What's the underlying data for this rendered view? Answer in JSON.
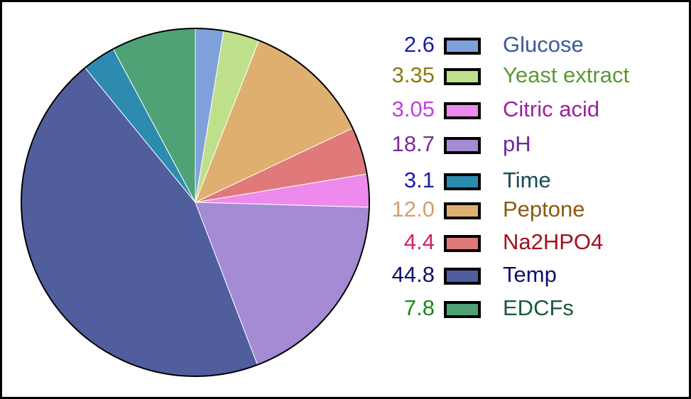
{
  "chart_data": {
    "type": "pie",
    "categories": [
      "Glucose",
      "Yeast extract",
      "Citric acid",
      "pH",
      "Time",
      "Peptone",
      "Na2HPO4",
      "Temp",
      "EDCFs"
    ],
    "values": [
      2.6,
      3.35,
      3.05,
      18.7,
      3.1,
      12.0,
      4.4,
      44.8,
      7.8
    ],
    "value_labels": [
      "2.6",
      "3.35",
      "3.05",
      "18.7",
      "3.1",
      "12.0",
      "4.4",
      "44.8",
      "7.8"
    ],
    "colors": [
      "#7fa1d9",
      "#bfe08a",
      "#ee8aee",
      "#a48bd4",
      "#2e8bb0",
      "#deaf6f",
      "#e07a7a",
      "#505e9e",
      "#4fa176"
    ],
    "value_label_colors": [
      "#1a1ab0",
      "#8a7a10",
      "#c040e0",
      "#7a2a9a",
      "#1a1ab0",
      "#d0a070",
      "#d0206a",
      "#10106a",
      "#1a8a1a"
    ],
    "legend_text_colors": [
      "#3a5a9a",
      "#5a9a30",
      "#a020a0",
      "#6a2aa0",
      "#1a4a5a",
      "#8a5a10",
      "#a01020",
      "#10106a",
      "#1a5a3a"
    ],
    "slice_order": [
      0,
      1,
      5,
      6,
      2,
      3,
      7,
      4,
      8
    ]
  }
}
